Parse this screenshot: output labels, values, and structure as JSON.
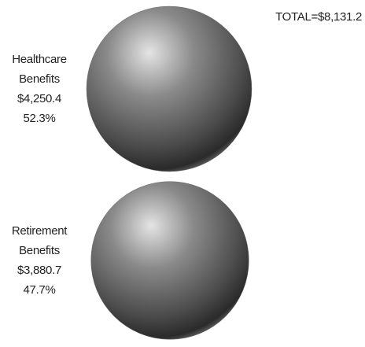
{
  "chart_data": {
    "type": "sphere",
    "categories": [
      "Healthcare Benefits",
      "Retirement Benefits"
    ],
    "values": [
      4250.4,
      3880.7
    ],
    "value_labels": [
      "$4,250.4",
      "$3,880.7"
    ],
    "shares": [
      52.3,
      47.7
    ],
    "share_labels": [
      "52.3%",
      "47.7%"
    ],
    "total": {
      "value": 8131.2,
      "label": "TOTAL=$8,131.2"
    },
    "color": "#6e6e6e"
  }
}
